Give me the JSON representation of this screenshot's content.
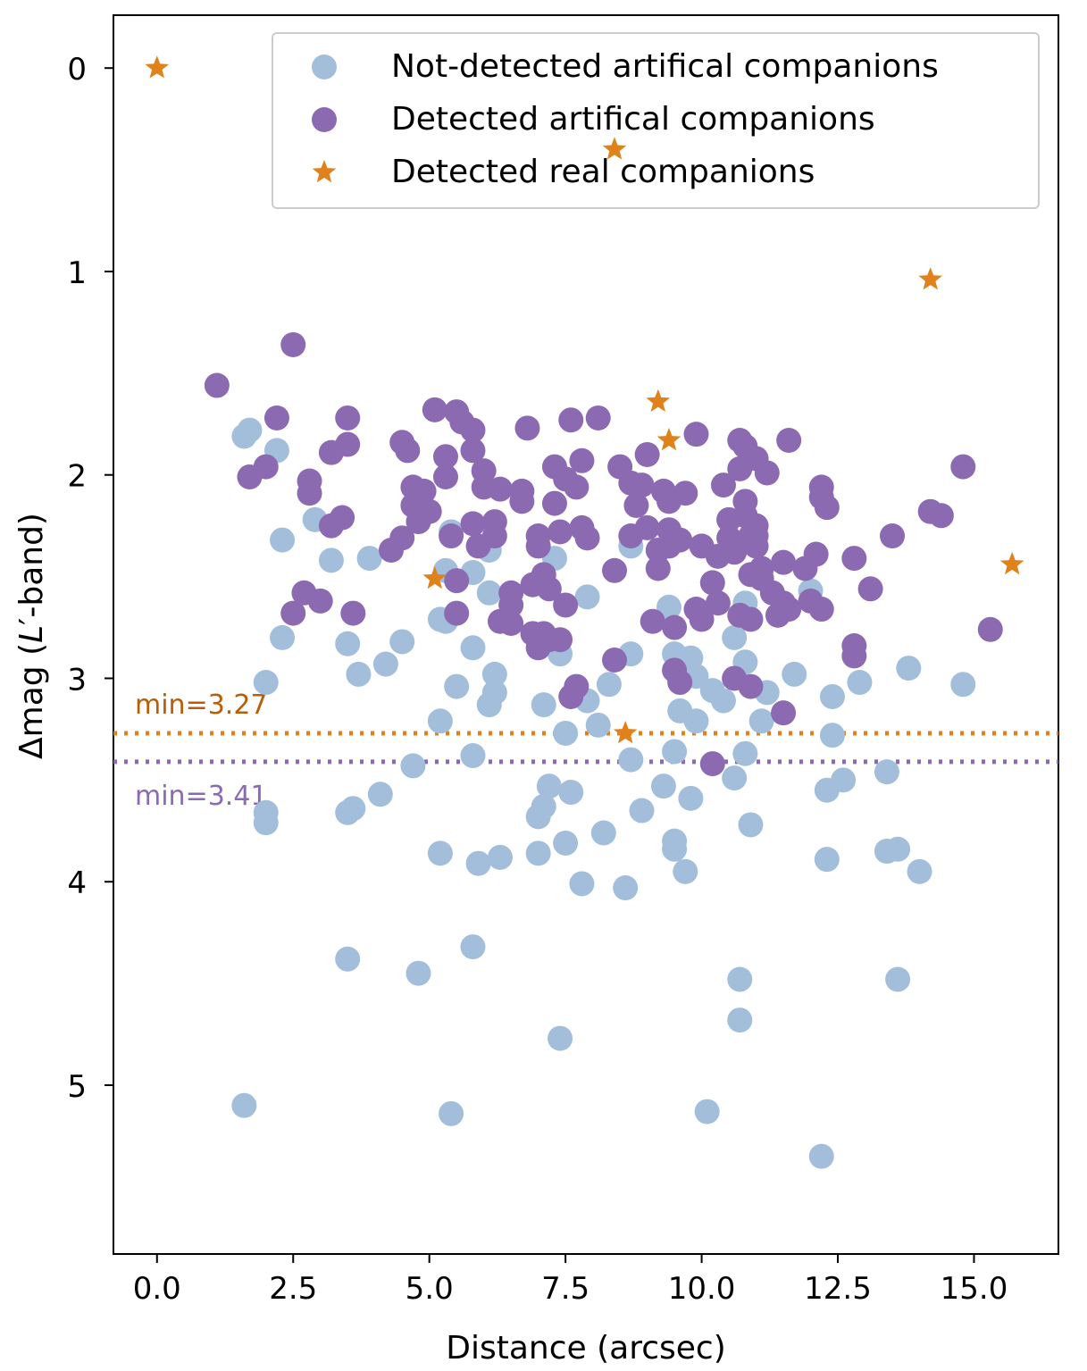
{
  "chart_data": {
    "type": "scatter",
    "title": "",
    "xlabel": "Distance (arcsec)",
    "ylabel_prefix": "Δmag (",
    "ylabel_italic": "L",
    "ylabel_suffix": "′-band)",
    "xlim": [
      -0.8,
      16.55
    ],
    "ylim": [
      5.83,
      -0.26
    ],
    "y_inverted": true,
    "grid": false,
    "x_ticks": [
      0.0,
      2.5,
      5.0,
      7.5,
      10.0,
      12.5,
      15.0
    ],
    "x_tick_labels": [
      "0.0",
      "2.5",
      "5.0",
      "7.5",
      "10.0",
      "12.5",
      "15.0"
    ],
    "y_ticks": [
      0,
      1,
      2,
      3,
      4,
      5
    ],
    "y_tick_labels": [
      "0",
      "1",
      "2",
      "3",
      "4",
      "5"
    ],
    "legend_position": "top-right",
    "colors": {
      "not_detected": "#a2bedb",
      "detected": "#8c6ab2",
      "real": "#e0821b",
      "min_real_line": "#e0821b",
      "min_real_text": "#b85d0a",
      "min_detected_line": "#8c6ab2"
    },
    "series": [
      {
        "name": "Not-detected artifical companions",
        "marker": "circle",
        "points": [
          [
            1.6,
            1.81
          ],
          [
            1.7,
            1.78
          ],
          [
            2.2,
            1.88
          ],
          [
            2.3,
            2.32
          ],
          [
            2.9,
            2.22
          ],
          [
            3.2,
            2.42
          ],
          [
            3.9,
            2.41
          ],
          [
            5.3,
            2.47
          ],
          [
            5.4,
            2.28
          ],
          [
            5.8,
            2.48
          ],
          [
            6.1,
            2.37
          ],
          [
            6.1,
            2.58
          ],
          [
            7.3,
            2.41
          ],
          [
            7.9,
            2.6
          ],
          [
            8.7,
            2.35
          ],
          [
            9.4,
            2.65
          ],
          [
            10.6,
            2.8
          ],
          [
            10.8,
            2.63
          ],
          [
            12.0,
            2.57
          ],
          [
            2.3,
            2.8
          ],
          [
            3.5,
            2.83
          ],
          [
            3.7,
            2.98
          ],
          [
            4.2,
            2.93
          ],
          [
            4.5,
            2.82
          ],
          [
            5.2,
            2.71
          ],
          [
            5.3,
            2.72
          ],
          [
            5.8,
            2.85
          ],
          [
            6.2,
            2.98
          ],
          [
            7.4,
            2.88
          ],
          [
            8.7,
            2.88
          ],
          [
            9.5,
            2.88
          ],
          [
            9.8,
            2.9
          ],
          [
            10.8,
            2.92
          ],
          [
            11.7,
            2.98
          ],
          [
            2.0,
            3.02
          ],
          [
            5.5,
            3.04
          ],
          [
            6.1,
            3.13
          ],
          [
            6.2,
            3.07
          ],
          [
            7.1,
            3.13
          ],
          [
            7.9,
            3.11
          ],
          [
            8.3,
            3.03
          ],
          [
            9.9,
            2.99
          ],
          [
            10.2,
            3.06
          ],
          [
            10.4,
            3.11
          ],
          [
            11.2,
            3.07
          ],
          [
            12.4,
            3.09
          ],
          [
            12.9,
            3.02
          ],
          [
            13.8,
            2.95
          ],
          [
            14.8,
            3.03
          ],
          [
            5.2,
            3.21
          ],
          [
            7.5,
            3.27
          ],
          [
            8.1,
            3.23
          ],
          [
            9.6,
            3.16
          ],
          [
            9.9,
            3.21
          ],
          [
            11.1,
            3.21
          ],
          [
            12.4,
            3.28
          ],
          [
            5.8,
            3.38
          ],
          [
            8.7,
            3.4
          ],
          [
            9.5,
            3.36
          ],
          [
            10.8,
            3.37
          ],
          [
            2.0,
            3.66
          ],
          [
            2.0,
            3.71
          ],
          [
            3.5,
            3.66
          ],
          [
            3.6,
            3.64
          ],
          [
            4.1,
            3.57
          ],
          [
            4.7,
            3.43
          ],
          [
            7.0,
            3.68
          ],
          [
            7.1,
            3.63
          ],
          [
            7.2,
            3.53
          ],
          [
            7.6,
            3.56
          ],
          [
            8.9,
            3.65
          ],
          [
            9.3,
            3.53
          ],
          [
            9.8,
            3.59
          ],
          [
            10.6,
            3.49
          ],
          [
            10.9,
            3.72
          ],
          [
            12.3,
            3.55
          ],
          [
            12.6,
            3.5
          ],
          [
            13.4,
            3.46
          ],
          [
            5.2,
            3.86
          ],
          [
            5.9,
            3.91
          ],
          [
            6.3,
            3.88
          ],
          [
            7.0,
            3.86
          ],
          [
            7.5,
            3.81
          ],
          [
            8.2,
            3.76
          ],
          [
            9.5,
            3.8
          ],
          [
            9.5,
            3.84
          ],
          [
            9.7,
            3.95
          ],
          [
            12.3,
            3.89
          ],
          [
            13.4,
            3.85
          ],
          [
            13.6,
            3.84
          ],
          [
            14.0,
            3.95
          ],
          [
            7.8,
            4.01
          ],
          [
            8.6,
            4.03
          ],
          [
            3.5,
            4.38
          ],
          [
            4.8,
            4.45
          ],
          [
            5.8,
            4.32
          ],
          [
            10.7,
            4.48
          ],
          [
            10.7,
            4.68
          ],
          [
            13.6,
            4.48
          ],
          [
            7.4,
            4.77
          ],
          [
            1.6,
            5.1
          ],
          [
            5.4,
            5.14
          ],
          [
            10.1,
            5.13
          ],
          [
            12.2,
            5.35
          ]
        ]
      },
      {
        "name": "Detected artifical companions",
        "marker": "circle",
        "points": [
          [
            1.1,
            1.56
          ],
          [
            2.5,
            1.36
          ],
          [
            1.7,
            2.01
          ],
          [
            2.0,
            1.96
          ],
          [
            2.2,
            1.72
          ],
          [
            2.8,
            2.03
          ],
          [
            2.8,
            2.09
          ],
          [
            3.2,
            2.25
          ],
          [
            3.2,
            1.89
          ],
          [
            3.4,
            2.21
          ],
          [
            3.5,
            1.72
          ],
          [
            3.5,
            1.85
          ],
          [
            2.5,
            2.68
          ],
          [
            2.7,
            2.58
          ],
          [
            3.0,
            2.62
          ],
          [
            3.6,
            2.68
          ],
          [
            4.5,
            1.84
          ],
          [
            4.6,
            1.88
          ],
          [
            4.3,
            2.37
          ],
          [
            4.5,
            2.31
          ],
          [
            4.7,
            2.06
          ],
          [
            4.7,
            2.15
          ],
          [
            4.8,
            2.23
          ],
          [
            4.9,
            2.08
          ],
          [
            5.0,
            2.18
          ],
          [
            5.1,
            1.68
          ],
          [
            5.3,
            2.01
          ],
          [
            5.3,
            1.91
          ],
          [
            5.4,
            2.3
          ],
          [
            5.5,
            1.69
          ],
          [
            5.6,
            1.74
          ],
          [
            5.5,
            2.52
          ],
          [
            5.5,
            2.68
          ],
          [
            5.8,
            1.88
          ],
          [
            5.8,
            1.78
          ],
          [
            5.8,
            2.24
          ],
          [
            5.9,
            2.35
          ],
          [
            6.0,
            1.98
          ],
          [
            6.0,
            2.06
          ],
          [
            6.2,
            2.3
          ],
          [
            6.2,
            2.23
          ],
          [
            6.3,
            2.07
          ],
          [
            6.3,
            2.72
          ],
          [
            6.5,
            2.58
          ],
          [
            6.5,
            2.64
          ],
          [
            6.5,
            2.73
          ],
          [
            6.7,
            2.08
          ],
          [
            6.7,
            2.13
          ],
          [
            6.8,
            1.77
          ],
          [
            6.9,
            2.54
          ],
          [
            6.9,
            2.78
          ],
          [
            7.0,
            2.3
          ],
          [
            7.0,
            2.35
          ],
          [
            7.0,
            2.85
          ],
          [
            7.1,
            2.49
          ],
          [
            7.2,
            2.56
          ],
          [
            7.3,
            1.96
          ],
          [
            7.3,
            2.14
          ],
          [
            7.4,
            2.28
          ],
          [
            7.4,
            2.81
          ],
          [
            7.5,
            2.02
          ],
          [
            7.5,
            2.64
          ],
          [
            7.6,
            3.09
          ],
          [
            7.6,
            1.73
          ],
          [
            7.7,
            2.06
          ],
          [
            7.7,
            3.04
          ],
          [
            7.8,
            1.93
          ],
          [
            7.8,
            2.26
          ],
          [
            7.9,
            2.31
          ],
          [
            8.1,
            1.72
          ],
          [
            8.4,
            2.47
          ],
          [
            8.5,
            1.96
          ],
          [
            8.7,
            2.04
          ],
          [
            8.7,
            2.3
          ],
          [
            8.8,
            2.15
          ],
          [
            8.9,
            2.05
          ],
          [
            9.0,
            1.9
          ],
          [
            9.0,
            2.26
          ],
          [
            9.1,
            2.72
          ],
          [
            9.2,
            2.46
          ],
          [
            9.2,
            2.37
          ],
          [
            9.3,
            2.08
          ],
          [
            9.4,
            2.27
          ],
          [
            9.4,
            2.13
          ],
          [
            9.4,
            2.35
          ],
          [
            9.5,
            2.75
          ],
          [
            9.5,
            2.96
          ],
          [
            9.6,
            3.02
          ],
          [
            9.6,
            2.32
          ],
          [
            9.7,
            2.09
          ],
          [
            9.9,
            1.8
          ],
          [
            9.9,
            2.66
          ],
          [
            10.0,
            2.71
          ],
          [
            10.0,
            2.35
          ],
          [
            10.2,
            2.53
          ],
          [
            10.2,
            3.42
          ],
          [
            10.3,
            2.63
          ],
          [
            10.4,
            2.05
          ],
          [
            10.5,
            2.22
          ],
          [
            10.5,
            2.31
          ],
          [
            10.6,
            2.38
          ],
          [
            10.6,
            3.0
          ],
          [
            10.7,
            1.97
          ],
          [
            10.7,
            2.69
          ],
          [
            10.7,
            1.83
          ],
          [
            10.8,
            1.86
          ],
          [
            10.8,
            2.2
          ],
          [
            10.8,
            2.33
          ],
          [
            10.8,
            2.13
          ],
          [
            10.9,
            2.49
          ],
          [
            10.9,
            2.71
          ],
          [
            10.9,
            3.04
          ],
          [
            11.0,
            2.25
          ],
          [
            11.0,
            2.3
          ],
          [
            11.0,
            1.92
          ],
          [
            11.1,
            2.46
          ],
          [
            11.1,
            2.51
          ],
          [
            11.2,
            1.99
          ],
          [
            11.3,
            2.58
          ],
          [
            11.4,
            2.69
          ],
          [
            11.5,
            2.43
          ],
          [
            11.5,
            2.63
          ],
          [
            11.5,
            3.17
          ],
          [
            11.6,
            2.66
          ],
          [
            11.6,
            1.83
          ],
          [
            11.9,
            2.46
          ],
          [
            12.0,
            2.62
          ],
          [
            12.2,
            2.66
          ],
          [
            12.2,
            2.06
          ],
          [
            12.2,
            2.11
          ],
          [
            12.3,
            2.16
          ],
          [
            12.1,
            2.39
          ],
          [
            12.8,
            2.41
          ],
          [
            12.8,
            2.84
          ],
          [
            12.8,
            2.89
          ],
          [
            13.1,
            2.56
          ],
          [
            13.5,
            2.3
          ],
          [
            14.2,
            2.18
          ],
          [
            14.4,
            2.2
          ],
          [
            14.8,
            1.96
          ],
          [
            15.3,
            2.76
          ],
          [
            8.4,
            2.91
          ],
          [
            7.1,
            2.78
          ],
          [
            7.2,
            2.81
          ],
          [
            11.0,
            2.35
          ],
          [
            10.3,
            2.4
          ],
          [
            10.9,
            2.3
          ]
        ]
      },
      {
        "name": "Detected real companions",
        "marker": "star",
        "points": [
          [
            0.0,
            0.0
          ],
          [
            8.4,
            0.4
          ],
          [
            14.2,
            1.04
          ],
          [
            9.2,
            1.64
          ],
          [
            9.4,
            1.83
          ],
          [
            5.1,
            2.51
          ],
          [
            15.7,
            2.44
          ],
          [
            8.6,
            3.27
          ]
        ]
      }
    ],
    "reference_lines": [
      {
        "name": "min-real",
        "y": 3.27,
        "label": "min=3.27",
        "style": "dotted",
        "label_position": "above-left"
      },
      {
        "name": "min-detected",
        "y": 3.41,
        "label": "min=3.41",
        "style": "dotted",
        "label_position": "below-left"
      }
    ]
  }
}
